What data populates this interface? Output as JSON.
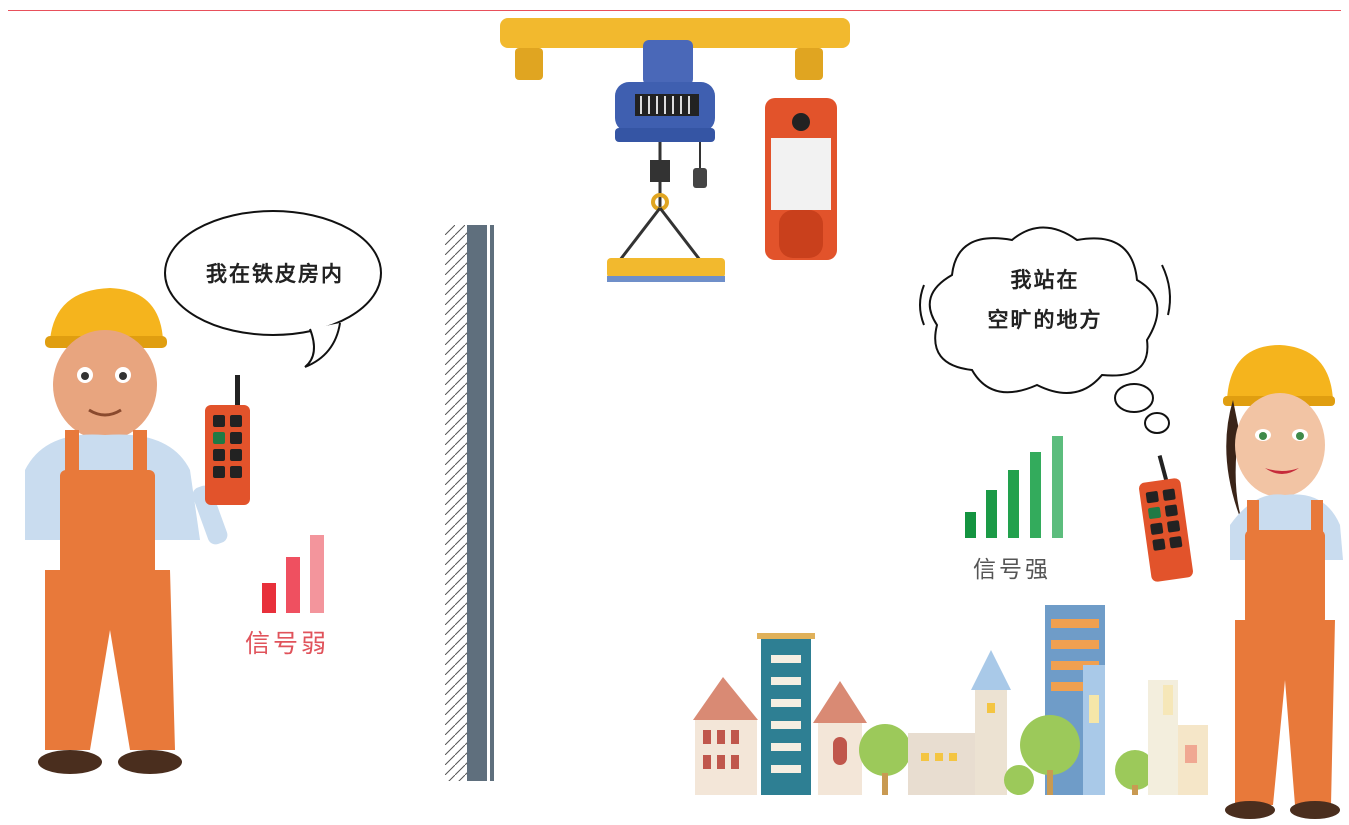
{
  "left_worker": {
    "speech": "我在铁皮房内",
    "signal_label": "信号弱",
    "signal_bars": 3,
    "signal_color": "#e8303b"
  },
  "right_worker": {
    "speech_line1": "我站在",
    "speech_line2": "空旷的地方",
    "signal_label": "信号强",
    "signal_bars": 5,
    "signal_color": "#1fa04a"
  },
  "colors": {
    "rule": "#e8505b",
    "crane_beam": "#f2b92e",
    "hoist": "#3f5fb0",
    "remote": "#e2532b",
    "wall": "#5f6f7d",
    "overalls": "#e8793a",
    "helmet": "#f5b41d"
  }
}
